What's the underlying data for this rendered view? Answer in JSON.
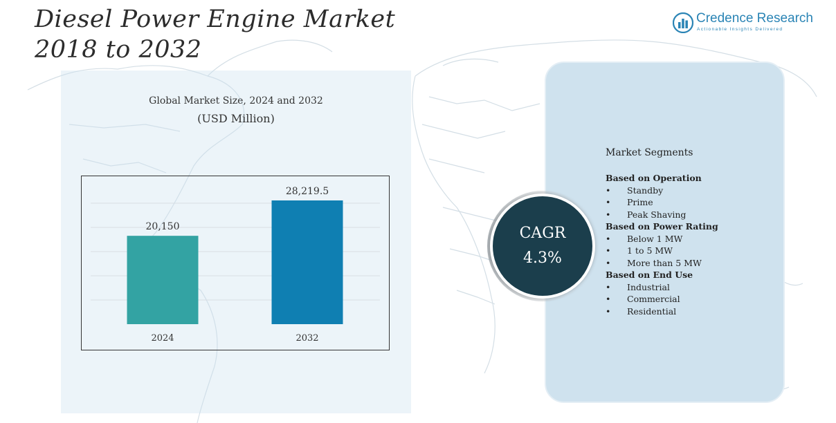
{
  "title": {
    "line1": "Diesel Power Engine Market",
    "line2": "2018 to 2032"
  },
  "brand": {
    "name": "Credence Research",
    "tagline": "Actionable Insights Delivered",
    "icon": "bar-chart-logo-icon",
    "color": "#2a84b5"
  },
  "chart_data": {
    "type": "bar",
    "title": "Global Market Size, 2024 and 2032",
    "unit": "(USD Million)",
    "categories": [
      "2024",
      "2032"
    ],
    "values": [
      20150,
      28219.5
    ],
    "value_labels": [
      "20,150",
      "28,219.5"
    ],
    "colors": [
      "#33a3a3",
      "#0f7fb2"
    ],
    "ylim": [
      0,
      32000
    ],
    "grid": true,
    "legend": "none"
  },
  "cagr": {
    "label": "CAGR",
    "value": "4.3%"
  },
  "segments": {
    "title": "Market Segments",
    "groups": [
      {
        "title": "Based on Operation",
        "items": [
          "Standby",
          "Prime",
          "Peak Shaving"
        ]
      },
      {
        "title": "Based on Power Rating",
        "items": [
          "Below 1 MW",
          "1 to 5 MW",
          "More than 5 MW"
        ]
      },
      {
        "title": "Based on End Use",
        "items": [
          "Industrial",
          "Commercial",
          "Residential"
        ]
      }
    ]
  },
  "colors": {
    "panel": "#cfe2ee",
    "cagr_circle": "#1b3e4c"
  }
}
